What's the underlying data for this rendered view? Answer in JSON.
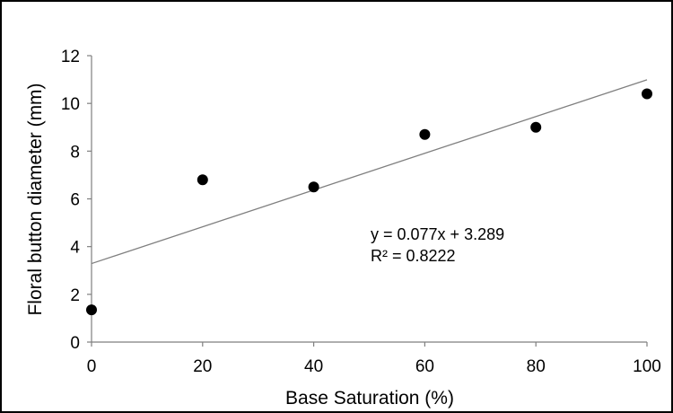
{
  "chart_data": {
    "type": "scatter",
    "xlabel": "Base Saturation (%)",
    "ylabel": "Floral button diameter (mm)",
    "xlim": [
      0,
      100
    ],
    "ylim": [
      0,
      12
    ],
    "x_ticks": [
      "0",
      "20",
      "40",
      "60",
      "80",
      "100"
    ],
    "y_ticks": [
      "0",
      "2",
      "4",
      "6",
      "8",
      "10",
      "12"
    ],
    "grid": false,
    "points": [
      {
        "x": 0,
        "y": 1.35
      },
      {
        "x": 20,
        "y": 6.8
      },
      {
        "x": 40,
        "y": 6.5
      },
      {
        "x": 60,
        "y": 8.7
      },
      {
        "x": 80,
        "y": 9.0
      },
      {
        "x": 100,
        "y": 10.4
      }
    ],
    "trendline": {
      "type": "linear",
      "slope": 0.077,
      "intercept": 3.289,
      "equation_label": "y = 0.077x + 3.289",
      "r2_label": "R² = 0.8222"
    },
    "colors": {
      "points": "#000000",
      "trendline": "#7f7f7f",
      "axis": "#7f7f7f"
    }
  }
}
